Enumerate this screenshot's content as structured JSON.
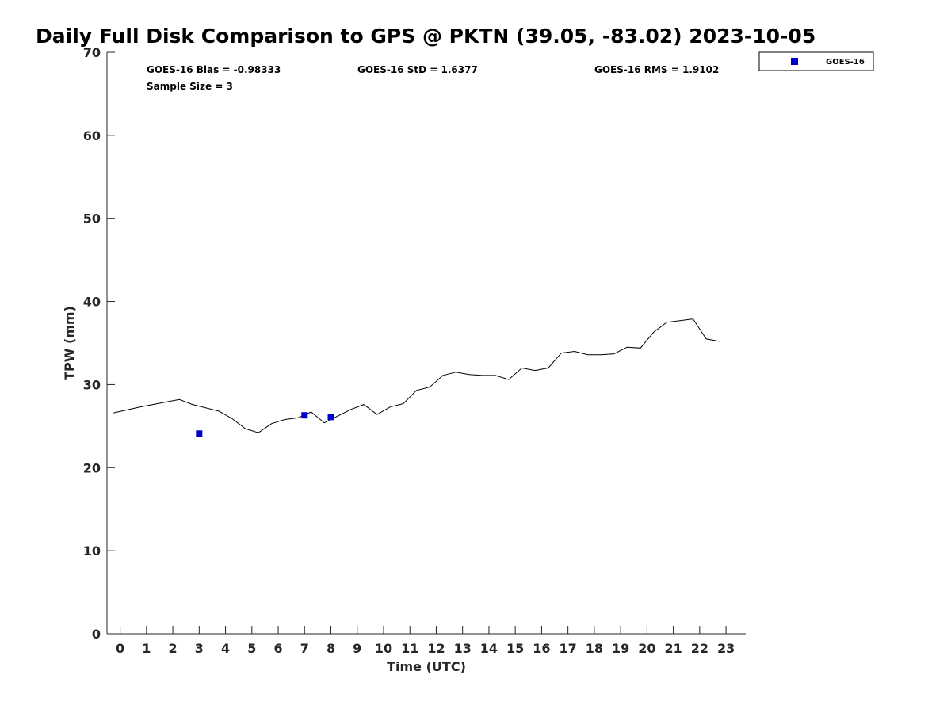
{
  "chart_data": {
    "type": "scatter",
    "title": "Daily Full Disk Comparison to GPS @ PKTN (39.05, -83.02) 2023-10-05",
    "xlabel": "Time (UTC)",
    "ylabel": "TPW (mm)",
    "xlim": [
      -0.5,
      23.75
    ],
    "ylim": [
      0,
      70
    ],
    "xticks": [
      0,
      1,
      2,
      3,
      4,
      5,
      6,
      7,
      8,
      9,
      10,
      11,
      12,
      13,
      14,
      15,
      16,
      17,
      18,
      19,
      20,
      21,
      22,
      23
    ],
    "yticks": [
      0,
      10,
      20,
      30,
      40,
      50,
      60,
      70
    ],
    "grid": false,
    "legend_position": "top-right-outside",
    "stats": {
      "bias": "GOES-16 Bias = -0.98333",
      "std": "GOES-16 StD = 1.6377",
      "rms": "GOES-16 RMS = 1.9102",
      "sample_size": "Sample Size = 3"
    },
    "series": [
      {
        "name": "GOES-16",
        "kind": "scatter",
        "color": "#0000cc",
        "x": [
          3.0,
          7.0,
          8.0
        ],
        "y": [
          24.1,
          26.3,
          26.1
        ]
      },
      {
        "kind": "line",
        "color": "#000000",
        "x": [
          -0.25,
          0.75,
          1.75,
          2.25,
          2.75,
          3.75,
          4.25,
          4.75,
          5.25,
          5.75,
          6.25,
          6.75,
          7.25,
          7.75,
          8.25,
          8.75,
          9.25,
          9.75,
          10.25,
          10.75,
          11.25,
          11.75,
          12.25,
          12.75,
          13.25,
          13.75,
          14.25,
          14.75,
          15.25,
          15.75,
          16.25,
          16.75,
          17.25,
          17.75,
          18.25,
          18.75,
          19.25,
          19.75,
          20.25,
          20.75,
          21.25,
          21.75,
          22.25,
          22.75
        ],
        "y": [
          26.6,
          27.3,
          27.9,
          28.2,
          27.6,
          26.8,
          25.9,
          24.7,
          24.2,
          25.3,
          25.8,
          26.0,
          26.7,
          25.4,
          26.2,
          27.0,
          27.6,
          26.4,
          27.3,
          27.7,
          29.3,
          29.7,
          31.1,
          31.5,
          31.2,
          31.1,
          31.1,
          30.6,
          32.0,
          31.7,
          32.0,
          33.8,
          34.0,
          33.6,
          33.6,
          33.7,
          34.5,
          34.4,
          36.3,
          37.5,
          37.7,
          37.9,
          35.5,
          35.2
        ]
      }
    ]
  }
}
